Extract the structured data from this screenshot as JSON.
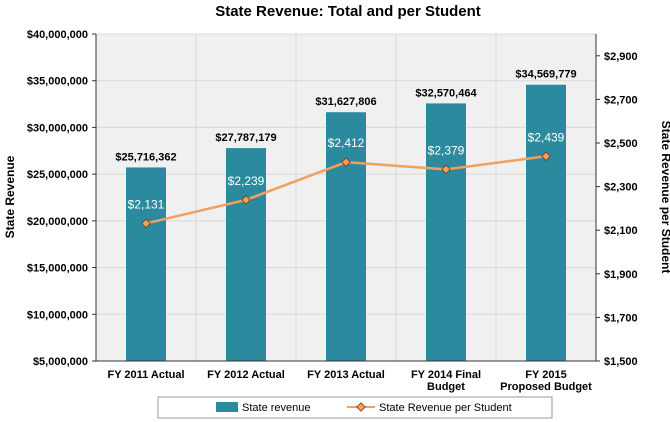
{
  "chart_data": {
    "type": "bar",
    "title": "State Revenue:  Total and per Student",
    "categories": [
      [
        "FY 2011 Actual"
      ],
      [
        "FY 2012 Actual"
      ],
      [
        "FY 2013 Actual"
      ],
      [
        "FY 2014 Final",
        "Budget"
      ],
      [
        "FY 2015",
        "Proposed Budget"
      ]
    ],
    "ylabel": "State Revenue",
    "y2label": "State Revenue per Student",
    "ylim": [
      5000000,
      40000000
    ],
    "y_ticks": [
      5000000,
      10000000,
      15000000,
      20000000,
      25000000,
      30000000,
      35000000,
      40000000
    ],
    "y_tick_labels": [
      "$5,000,000",
      "$10,000,000",
      "$15,000,000",
      "$20,000,000",
      "$25,000,000",
      "$30,000,000",
      "$35,000,000",
      "$40,000,000"
    ],
    "y2lim": [
      1500,
      3000
    ],
    "y2_ticks": [
      1500,
      1700,
      1900,
      2100,
      2300,
      2500,
      2700,
      2900
    ],
    "y2_tick_labels": [
      "$1,500",
      "$1,700",
      "$1,900",
      "$2,100",
      "$2,300",
      "$2,500",
      "$2,700",
      "$2,900"
    ],
    "series": [
      {
        "name": "State revenue",
        "type": "bar",
        "axis": "left",
        "color": "#2b8a9e",
        "values": [
          25716362,
          27787179,
          31627806,
          32570464,
          34569779
        ],
        "labels": [
          "$25,716,362",
          "$27,787,179",
          "$31,627,806",
          "$32,570,464",
          "$34,569,779"
        ]
      },
      {
        "name": "State Revenue per Student",
        "type": "line",
        "axis": "right",
        "color": "#f0a060",
        "values": [
          2131,
          2239,
          2412,
          2379,
          2439
        ],
        "labels": [
          "$2,131",
          "$2,239",
          "$2,412",
          "$2,379",
          "$2,439"
        ]
      }
    ],
    "grid": true,
    "legend": "bottom"
  }
}
